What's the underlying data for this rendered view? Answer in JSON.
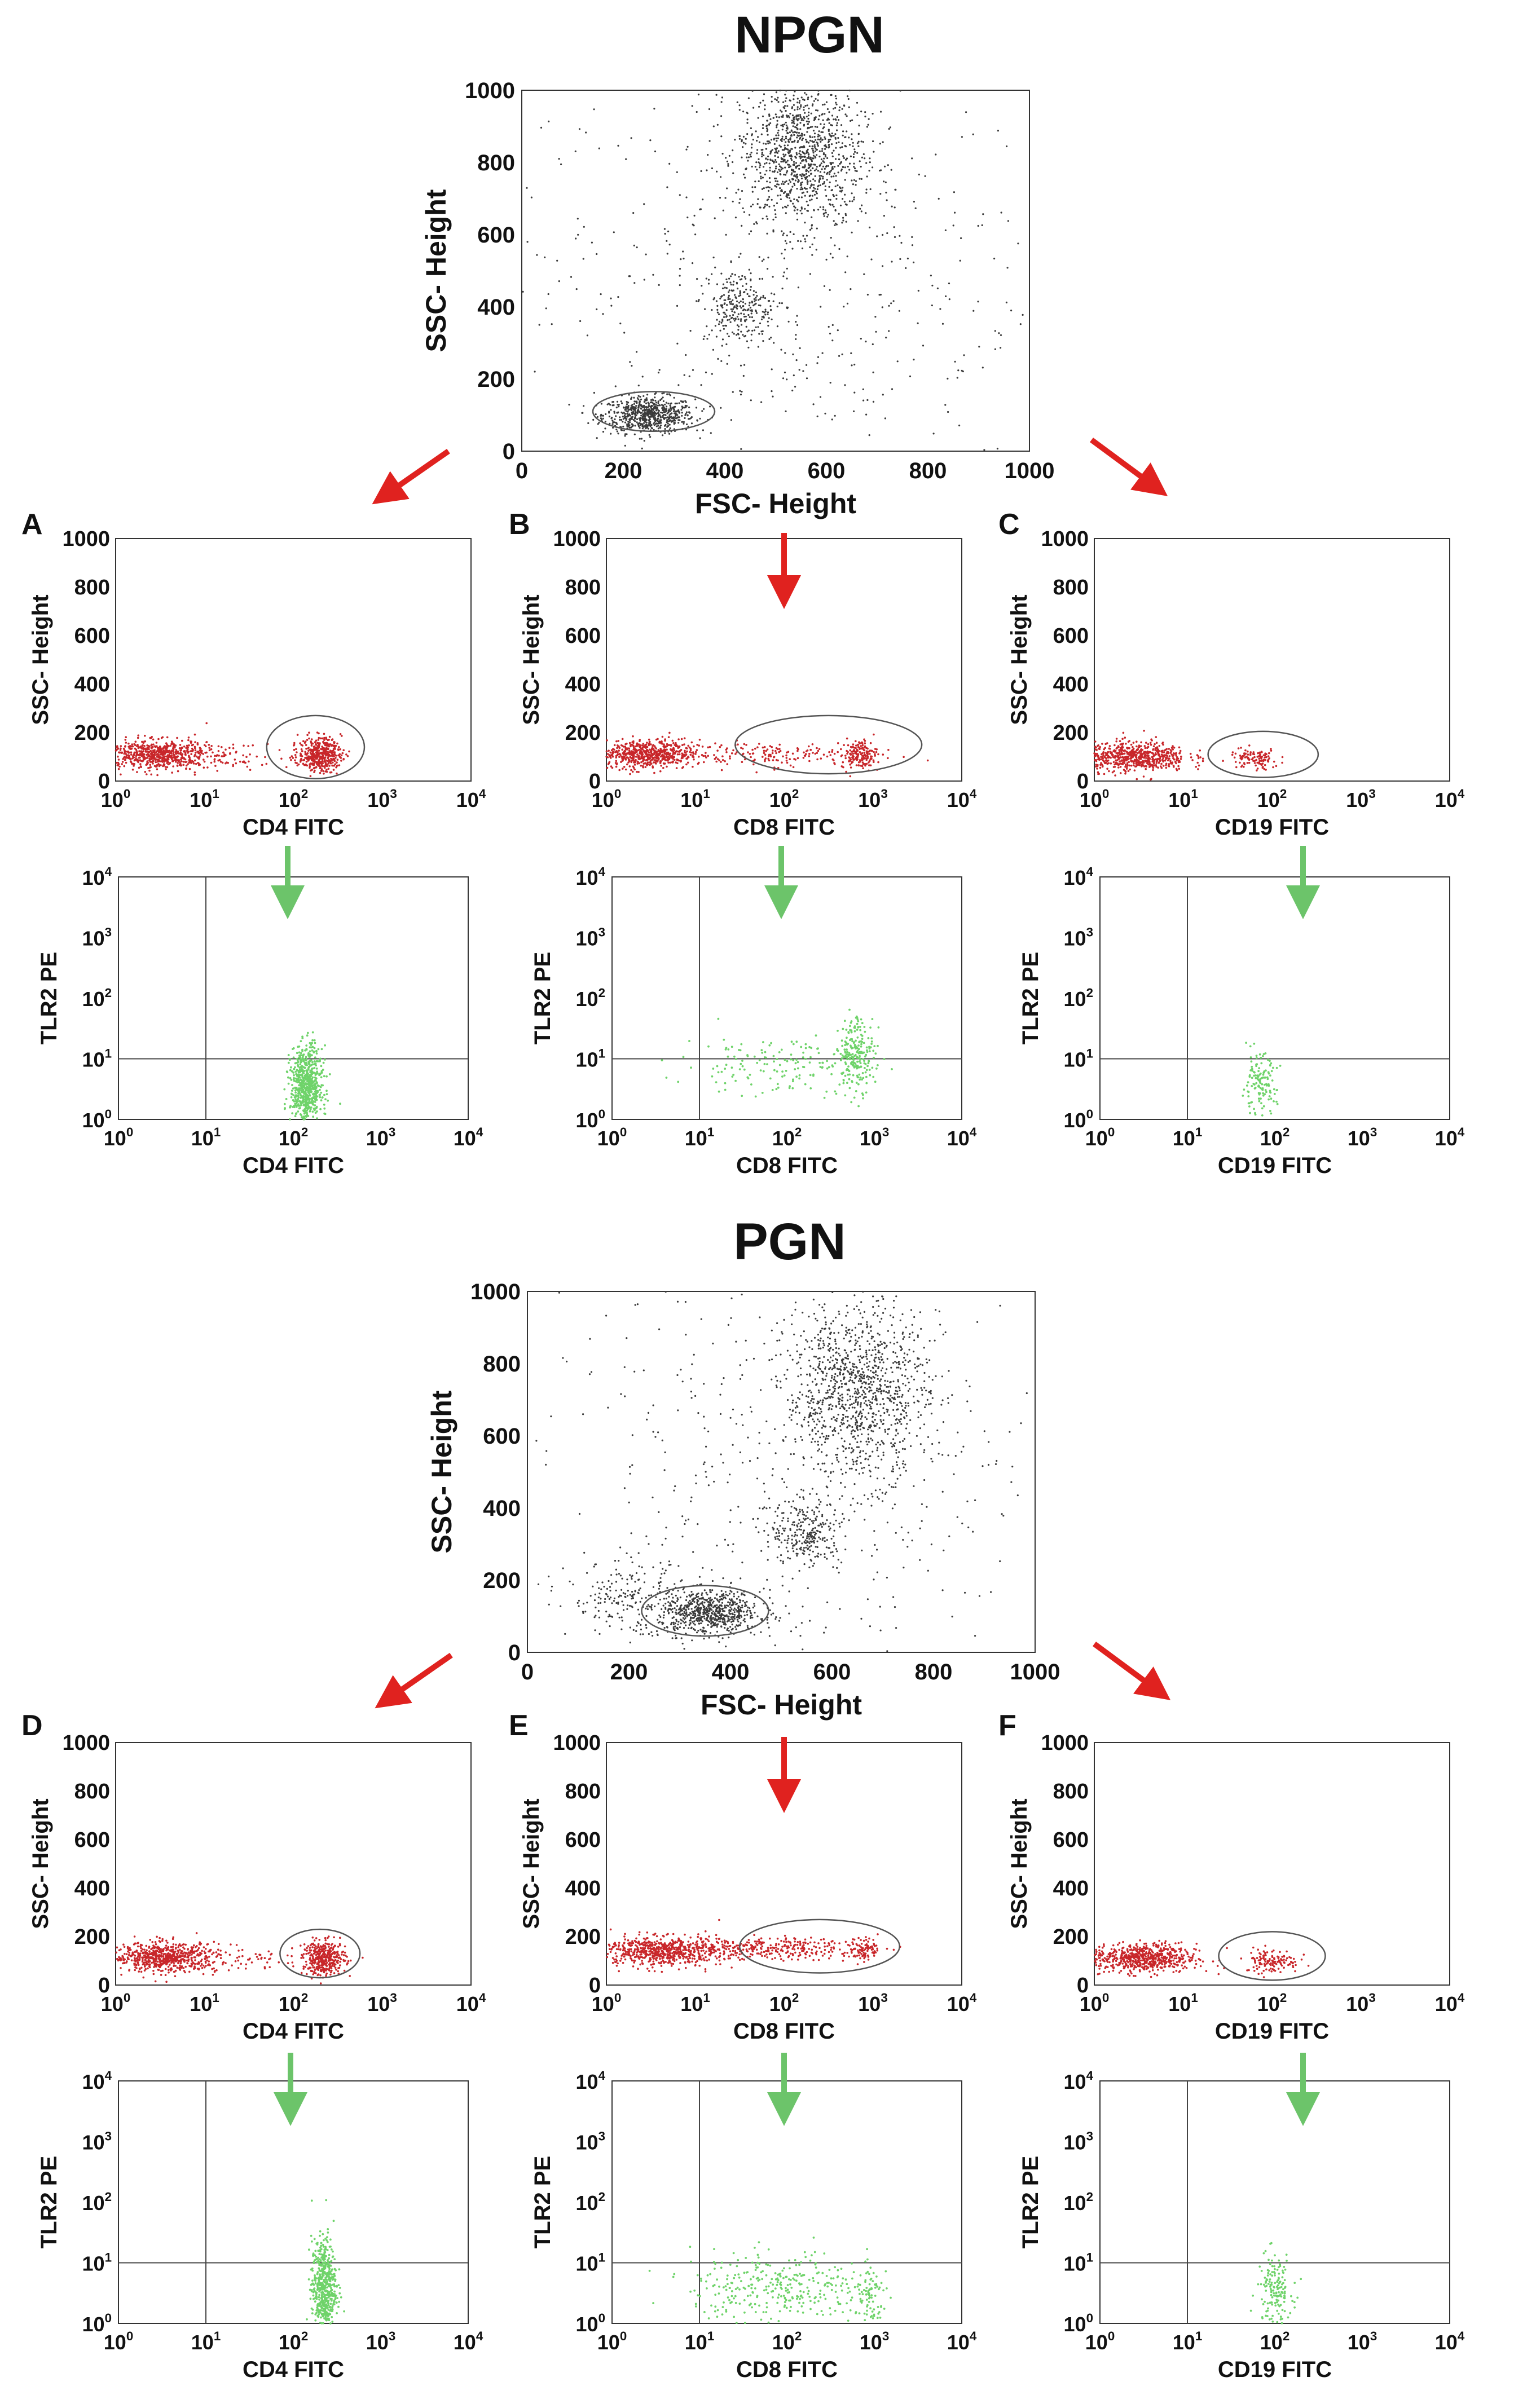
{
  "colors": {
    "ungated": "#3a3a3a",
    "cd_gated": "#c8262a",
    "tlr2": "#6fd36a",
    "arrow_red": "#e0221f",
    "arrow_green": "#6cc46a",
    "gate_line": "#555555"
  },
  "sections": [
    {
      "title": "NPGN",
      "scatter": {
        "type": "scatter",
        "xlabel": "FSC- Height",
        "ylabel": "SSC- Height",
        "xlim": [
          0,
          1000
        ],
        "ylim": [
          0,
          1000
        ],
        "xticks": [
          "0",
          "200",
          "400",
          "600",
          "800",
          "1000"
        ],
        "yticks": [
          "0",
          "200",
          "400",
          "600",
          "800",
          "1000"
        ],
        "gate": {
          "cx": 260,
          "cy": 110,
          "rx": 120,
          "ry": 55
        },
        "clusters": [
          {
            "cx": 250,
            "cy": 100,
            "sx": 45,
            "sy": 25,
            "n": 700,
            "color": "ungated"
          },
          {
            "cx": 550,
            "cy": 820,
            "sx": 60,
            "sy": 100,
            "n": 1100,
            "color": "ungated"
          },
          {
            "cx": 430,
            "cy": 400,
            "sx": 35,
            "sy": 50,
            "n": 260,
            "color": "ungated"
          },
          {
            "cx": 500,
            "cy": 500,
            "sx": 260,
            "sy": 300,
            "n": 500,
            "color": "ungated"
          }
        ]
      },
      "panels": [
        {
          "letter": "A",
          "top": {
            "xlabel": "CD4 FITC",
            "ylabel": "SSC- Height",
            "xlim_log": [
              0,
              4
            ],
            "ylim": [
              0,
              1000
            ],
            "yticks": [
              "0",
              "200",
              "400",
              "600",
              "800",
              "1000"
            ],
            "gate": {
              "cx": 2.25,
              "cy": 140,
              "rx": 0.55,
              "ry": 130
            },
            "clusters": [
              {
                "cx": 0.45,
                "cy": 110,
                "sx": 0.3,
                "sy": 30,
                "n": 650
              },
              {
                "cx": 2.3,
                "cy": 110,
                "sx": 0.12,
                "sy": 35,
                "n": 420
              },
              {
                "cx": 1.3,
                "cy": 100,
                "sx": 0.5,
                "sy": 25,
                "n": 90
              }
            ]
          },
          "bottom": {
            "xlabel": "CD4 FITC",
            "ylabel": "TLR2 PE",
            "xlim_log": [
              0,
              4
            ],
            "ylim_log": [
              0,
              4
            ],
            "quad": {
              "x": 1,
              "y": 1
            },
            "clusters": [
              {
                "cx": 2.15,
                "cy": 0.55,
                "sx": 0.09,
                "sy": 0.32,
                "n": 700
              }
            ]
          }
        },
        {
          "letter": "B",
          "top": {
            "xlabel": "CD8 FITC",
            "ylabel": "SSC- Height",
            "xlim_log": [
              0,
              4
            ],
            "ylim": [
              0,
              1000
            ],
            "yticks": [
              "0",
              "200",
              "400",
              "600",
              "800",
              "1000"
            ],
            "gate": {
              "cx": 2.5,
              "cy": 150,
              "rx": 1.05,
              "ry": 120
            },
            "clusters": [
              {
                "cx": 0.45,
                "cy": 110,
                "sx": 0.3,
                "sy": 30,
                "n": 650
              },
              {
                "cx": 2.85,
                "cy": 110,
                "sx": 0.1,
                "sy": 30,
                "n": 160
              },
              {
                "cx": 1.8,
                "cy": 110,
                "sx": 0.55,
                "sy": 25,
                "n": 170
              }
            ]
          },
          "bottom": {
            "xlabel": "CD8 FITC",
            "ylabel": "TLR2 PE",
            "xlim_log": [
              0,
              4
            ],
            "ylim_log": [
              0,
              4
            ],
            "quad": {
              "x": 1,
              "y": 1
            },
            "clusters": [
              {
                "cx": 2.8,
                "cy": 1.1,
                "sx": 0.1,
                "sy": 0.3,
                "n": 220
              },
              {
                "cx": 1.9,
                "cy": 0.9,
                "sx": 0.55,
                "sy": 0.25,
                "n": 160
              }
            ]
          }
        },
        {
          "letter": "C",
          "top": {
            "xlabel": "CD19 FITC",
            "ylabel": "SSC- Height",
            "xlim_log": [
              0,
              4
            ],
            "ylim": [
              0,
              1000
            ],
            "yticks": [
              "0",
              "200",
              "400",
              "600",
              "800",
              "1000"
            ],
            "gate": {
              "cx": 1.9,
              "cy": 110,
              "rx": 0.62,
              "ry": 95
            },
            "clusters": [
              {
                "cx": 0.45,
                "cy": 100,
                "sx": 0.3,
                "sy": 30,
                "n": 650
              },
              {
                "cx": 1.8,
                "cy": 90,
                "sx": 0.14,
                "sy": 22,
                "n": 110
              }
            ]
          },
          "bottom": {
            "xlabel": "CD19 FITC",
            "ylabel": "TLR2 PE",
            "xlim_log": [
              0,
              4
            ],
            "ylim_log": [
              0,
              4
            ],
            "quad": {
              "x": 1,
              "y": 1
            },
            "clusters": [
              {
                "cx": 1.82,
                "cy": 0.55,
                "sx": 0.1,
                "sy": 0.25,
                "n": 140
              }
            ]
          }
        }
      ]
    },
    {
      "title": "PGN",
      "scatter": {
        "type": "scatter",
        "xlabel": "FSC- Height",
        "ylabel": "SSC- Height",
        "xlim": [
          0,
          1000
        ],
        "ylim": [
          0,
          1000
        ],
        "xticks": [
          "0",
          "200",
          "400",
          "600",
          "800",
          "1000"
        ],
        "yticks": [
          "0",
          "200",
          "400",
          "600",
          "800",
          "1000"
        ],
        "gate": {
          "cx": 350,
          "cy": 115,
          "rx": 125,
          "ry": 70
        },
        "clusters": [
          {
            "cx": 360,
            "cy": 110,
            "sx": 50,
            "sy": 30,
            "n": 700
          },
          {
            "cx": 650,
            "cy": 720,
            "sx": 70,
            "sy": 120,
            "n": 1100
          },
          {
            "cx": 550,
            "cy": 330,
            "sx": 35,
            "sy": 45,
            "n": 260
          },
          {
            "cx": 200,
            "cy": 150,
            "sx": 60,
            "sy": 50,
            "n": 200
          },
          {
            "cx": 550,
            "cy": 500,
            "sx": 260,
            "sy": 300,
            "n": 500
          }
        ]
      },
      "panels": [
        {
          "letter": "D",
          "top": {
            "xlabel": "CD4 FITC",
            "ylabel": "SSC- Height",
            "xlim_log": [
              0,
              4
            ],
            "ylim": [
              0,
              1000
            ],
            "yticks": [
              "0",
              "200",
              "400",
              "600",
              "800",
              "1000"
            ],
            "gate": {
              "cx": 2.3,
              "cy": 130,
              "rx": 0.45,
              "ry": 100
            },
            "clusters": [
              {
                "cx": 0.55,
                "cy": 115,
                "sx": 0.3,
                "sy": 30,
                "n": 650
              },
              {
                "cx": 2.35,
                "cy": 110,
                "sx": 0.12,
                "sy": 35,
                "n": 380
              },
              {
                "cx": 1.4,
                "cy": 105,
                "sx": 0.5,
                "sy": 25,
                "n": 80
              }
            ]
          },
          "bottom": {
            "xlabel": "CD4 FITC",
            "ylabel": "TLR2 PE",
            "xlim_log": [
              0,
              4
            ],
            "ylim_log": [
              0,
              4
            ],
            "quad": {
              "x": 1,
              "y": 1
            },
            "clusters": [
              {
                "cx": 2.35,
                "cy": 0.6,
                "sx": 0.07,
                "sy": 0.4,
                "n": 550
              }
            ]
          }
        },
        {
          "letter": "E",
          "top": {
            "xlabel": "CD8 FITC",
            "ylabel": "SSC- Height",
            "xlim_log": [
              0,
              4
            ],
            "ylim": [
              0,
              1000
            ],
            "yticks": [
              "0",
              "200",
              "400",
              "600",
              "800",
              "1000"
            ],
            "gate": {
              "cx": 2.4,
              "cy": 160,
              "rx": 0.9,
              "ry": 110
            },
            "clusters": [
              {
                "cx": 0.6,
                "cy": 140,
                "sx": 0.35,
                "sy": 30,
                "n": 650
              },
              {
                "cx": 1.8,
                "cy": 150,
                "sx": 0.55,
                "sy": 22,
                "n": 320
              },
              {
                "cx": 2.9,
                "cy": 150,
                "sx": 0.08,
                "sy": 25,
                "n": 90
              }
            ]
          },
          "bottom": {
            "xlabel": "CD8 FITC",
            "ylabel": "TLR2 PE",
            "xlim_log": [
              0,
              4
            ],
            "ylim_log": [
              0,
              4
            ],
            "quad": {
              "x": 1,
              "y": 1
            },
            "clusters": [
              {
                "cx": 1.9,
                "cy": 0.6,
                "sx": 0.5,
                "sy": 0.3,
                "n": 330
              },
              {
                "cx": 2.95,
                "cy": 0.4,
                "sx": 0.08,
                "sy": 0.25,
                "n": 80
              }
            ]
          }
        },
        {
          "letter": "F",
          "top": {
            "xlabel": "CD19 FITC",
            "ylabel": "SSC- Height",
            "xlim_log": [
              0,
              4
            ],
            "ylim": [
              0,
              1000
            ],
            "yticks": [
              "0",
              "200",
              "400",
              "600",
              "800",
              "1000"
            ],
            "gate": {
              "cx": 2.0,
              "cy": 120,
              "rx": 0.6,
              "ry": 100
            },
            "clusters": [
              {
                "cx": 0.55,
                "cy": 110,
                "sx": 0.3,
                "sy": 30,
                "n": 650
              },
              {
                "cx": 2.0,
                "cy": 100,
                "sx": 0.15,
                "sy": 25,
                "n": 130
              }
            ]
          },
          "bottom": {
            "xlabel": "CD19 FITC",
            "ylabel": "TLR2 PE",
            "xlim_log": [
              0,
              4
            ],
            "ylim_log": [
              0,
              4
            ],
            "quad": {
              "x": 1,
              "y": 1
            },
            "clusters": [
              {
                "cx": 2.0,
                "cy": 0.55,
                "sx": 0.1,
                "sy": 0.3,
                "n": 160
              }
            ]
          }
        }
      ]
    }
  ]
}
